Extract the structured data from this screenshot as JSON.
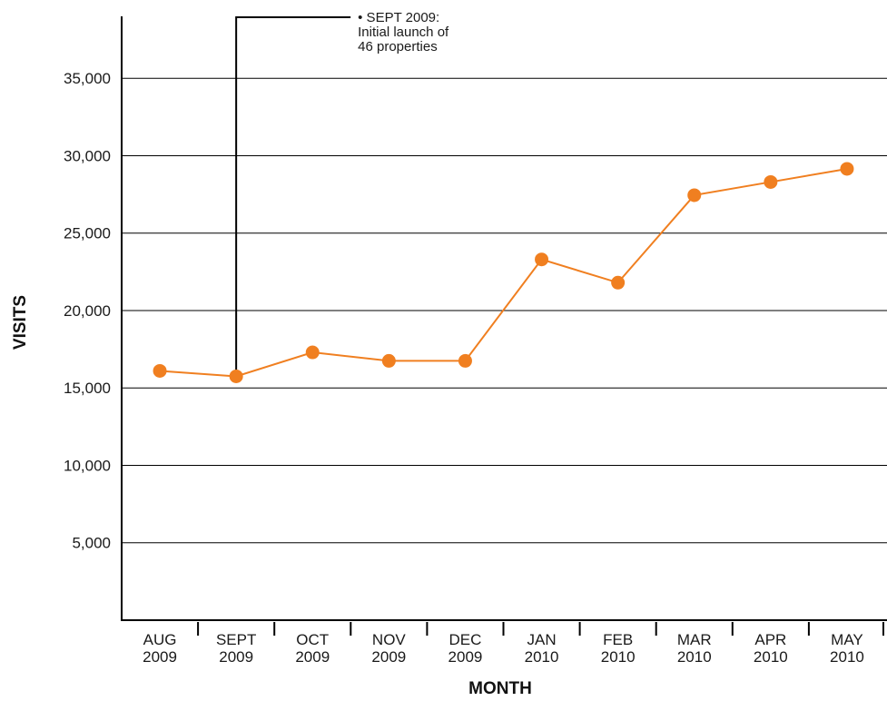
{
  "chart_data": {
    "type": "line",
    "title": "",
    "xlabel": "MONTH",
    "ylabel": "VISITS",
    "categories": [
      [
        "AUG",
        "2009"
      ],
      [
        "SEPT",
        "2009"
      ],
      [
        "OCT",
        "2009"
      ],
      [
        "NOV",
        "2009"
      ],
      [
        "DEC",
        "2009"
      ],
      [
        "JAN",
        "2010"
      ],
      [
        "FEB",
        "2010"
      ],
      [
        "MAR",
        "2010"
      ],
      [
        "APR",
        "2010"
      ],
      [
        "MAY",
        "2010"
      ]
    ],
    "series": [
      {
        "values": [
          16100,
          15750,
          17300,
          16750,
          16750,
          23300,
          21800,
          27450,
          28300,
          29150
        ],
        "color": "#f07f20"
      }
    ],
    "ylim": [
      0,
      39000
    ],
    "yticks": [
      5000,
      10000,
      15000,
      20000,
      25000,
      30000,
      35000
    ],
    "ytick_labels": [
      "5,000",
      "10,000",
      "15,000",
      "20,000",
      "25,000",
      "30,000",
      "35,000"
    ],
    "grid": true,
    "annotations": [
      {
        "category_index": 1,
        "lines": [
          "• SEPT 2009:",
          "Initial launch of",
          "46 properties"
        ]
      }
    ]
  }
}
